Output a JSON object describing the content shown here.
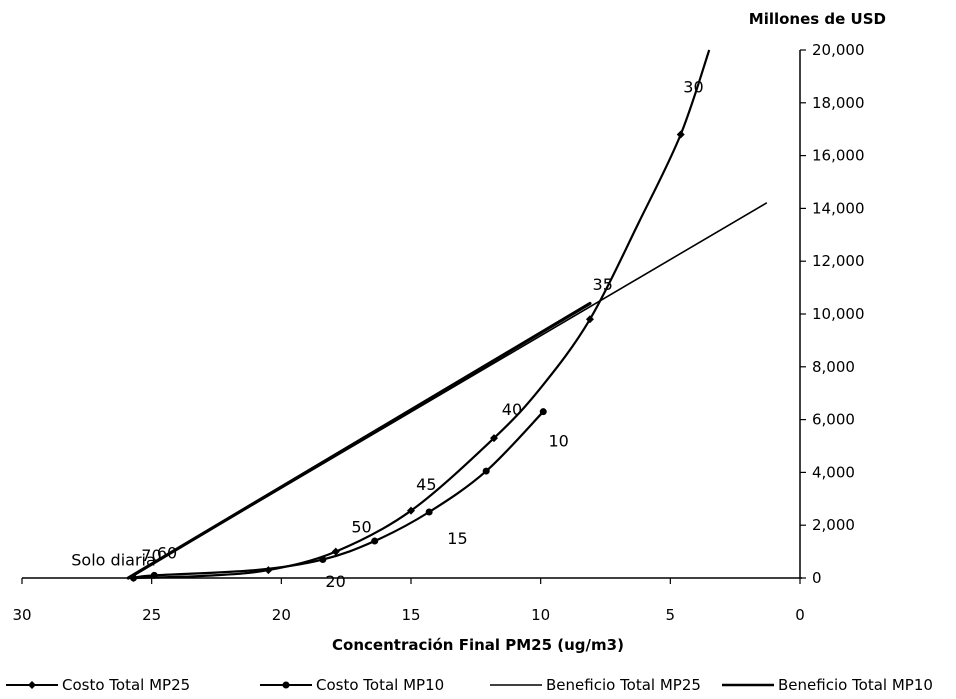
{
  "chart_data": {
    "type": "line",
    "xlabel": "Concentración Final PM25 (ug/m3)",
    "ylabel": "Millones de USD",
    "xlim": [
      30,
      0
    ],
    "ylim": [
      0,
      20000
    ],
    "x_reversed": true,
    "x_ticks": [
      30,
      25,
      20,
      15,
      10,
      5,
      0
    ],
    "y_ticks": [
      0,
      2000,
      4000,
      6000,
      8000,
      10000,
      12000,
      14000,
      16000,
      18000,
      20000
    ],
    "y_tick_labels": [
      "0",
      "2,000",
      "4,000",
      "6,000",
      "8,000",
      "10,000",
      "12,000",
      "14,000",
      "16,000",
      "18,000",
      "20,000"
    ],
    "y_axis_position": "right",
    "legend_position": "bottom",
    "series": [
      {
        "name": "Costo Total MP25",
        "style": "curve-diamond-markers",
        "points": [
          [
            25.7,
            0
          ],
          [
            20.5,
            300
          ],
          [
            17.9,
            1000
          ],
          [
            15,
            2550
          ],
          [
            11.8,
            5300
          ],
          [
            8.1,
            9800
          ],
          [
            4.6,
            16800
          ]
        ],
        "curve": [
          [
            25.7,
            0
          ],
          [
            23,
            80
          ],
          [
            20.5,
            300
          ],
          [
            17.9,
            1000
          ],
          [
            15,
            2550
          ],
          [
            11.8,
            5300
          ],
          [
            10,
            7200
          ],
          [
            8.1,
            9800
          ],
          [
            6.2,
            13500
          ],
          [
            4.6,
            16800
          ],
          [
            3.5,
            20000
          ]
        ]
      },
      {
        "name": "Costo Total MP10",
        "style": "curve-circle-markers",
        "points": [
          [
            25.7,
            0
          ],
          [
            24.9,
            100
          ],
          [
            18.4,
            700
          ],
          [
            16.4,
            1400
          ],
          [
            14.3,
            2500
          ],
          [
            12.1,
            4050
          ],
          [
            9.9,
            6300
          ]
        ],
        "curve": [
          [
            25.7,
            0
          ],
          [
            24.9,
            100
          ],
          [
            21,
            300
          ],
          [
            18.4,
            700
          ],
          [
            16.4,
            1400
          ],
          [
            14.3,
            2500
          ],
          [
            12.1,
            4050
          ],
          [
            9.9,
            6300
          ]
        ]
      },
      {
        "name": "Beneficio Total MP25",
        "style": "thin-line",
        "points": [
          [
            25.9,
            0
          ],
          [
            1.3,
            14200
          ]
        ]
      },
      {
        "name": "Beneficio Total MP10",
        "style": "thick-line",
        "points": [
          [
            25.9,
            0
          ],
          [
            8.1,
            10400
          ]
        ]
      }
    ],
    "annotations": [
      {
        "text": "Solo diaria",
        "x": 28.1,
        "y": 480
      },
      {
        "text": "70",
        "x": 25.4,
        "y": 650
      },
      {
        "text": "60",
        "x": 24.8,
        "y": 740
      },
      {
        "text": "20",
        "x": 18.3,
        "y": -350
      },
      {
        "text": "50",
        "x": 17.3,
        "y": 1720
      },
      {
        "text": "45",
        "x": 14.8,
        "y": 3330
      },
      {
        "text": "15",
        "x": 13.6,
        "y": 1290
      },
      {
        "text": "40",
        "x": 11.5,
        "y": 6180
      },
      {
        "text": "10",
        "x": 9.7,
        "y": 4980
      },
      {
        "text": "35",
        "x": 8.0,
        "y": 10900
      },
      {
        "text": "30",
        "x": 4.5,
        "y": 18390
      }
    ]
  }
}
